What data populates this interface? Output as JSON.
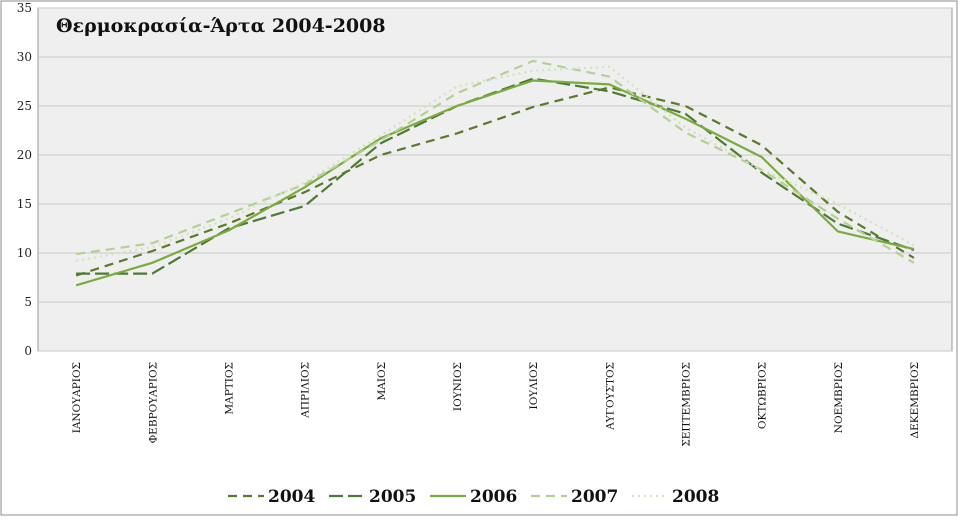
{
  "chart_data": {
    "type": "line",
    "title": "Θερμοκρασία-Άρτα 2004-2008",
    "xlabel": "",
    "ylabel": "",
    "ylim": [
      0,
      35
    ],
    "yticks": [
      0,
      5,
      10,
      15,
      20,
      25,
      30,
      35
    ],
    "grid": true,
    "legend_position": "bottom",
    "categories": [
      "ΙΑΝΟΥΑΡΙΟΣ",
      "ΦΕΒΡΟΥΑΡΙΟΣ",
      "ΜΑΡΤΙΟΣ",
      "ΑΠΡΙΛΙΟΣ",
      "ΜΑΙΟΣ",
      "ΙΟΥΝΙΟΣ",
      "ΙΟΥΛΙΟΣ",
      "ΑΥΓΟΥΣΤΟΣ",
      "ΣΕΠΤΕΜΒΡΙΟΣ",
      "ΟΚΤΩΒΡΙΟΣ",
      "ΝΟΕΜΒΡΙΟΣ",
      "ΔΕΚΕΜΒΡΙΟΣ"
    ],
    "series": [
      {
        "name": "2004",
        "color": "#5b7a2c",
        "dash": "dash",
        "values": [
          7.7,
          10.2,
          13.0,
          16.2,
          20.0,
          22.2,
          24.9,
          26.9,
          25.0,
          21.0,
          14.2,
          9.5
        ]
      },
      {
        "name": "2005",
        "color": "#4f7a34",
        "dash": "longdash",
        "values": [
          7.9,
          7.9,
          12.5,
          14.8,
          21.2,
          25.0,
          27.8,
          26.5,
          24.2,
          18.2,
          13.0,
          10.3
        ]
      },
      {
        "name": "2006",
        "color": "#7aab3e",
        "dash": "solid",
        "values": [
          6.7,
          9.0,
          12.3,
          16.7,
          21.7,
          25.0,
          27.6,
          27.2,
          23.7,
          19.8,
          12.2,
          10.4
        ]
      },
      {
        "name": "2007",
        "color": "#b5cf95",
        "dash": "dash",
        "values": [
          9.9,
          11.0,
          14.0,
          17.0,
          21.5,
          26.3,
          29.6,
          28.0,
          22.3,
          18.5,
          13.5,
          9.0
        ]
      },
      {
        "name": "2008",
        "color": "#d2e2bc",
        "dash": "dot",
        "values": [
          9.2,
          10.6,
          13.5,
          17.2,
          22.0,
          27.0,
          28.6,
          29.0,
          22.8,
          18.5,
          15.0,
          10.8
        ]
      }
    ]
  }
}
